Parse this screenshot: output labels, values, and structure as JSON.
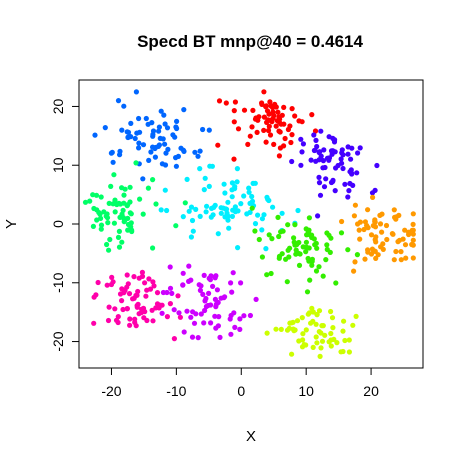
{
  "chart_data": {
    "type": "scatter",
    "title": "Specd BT mnp@40 = 0.4614",
    "xlabel": "X",
    "ylabel": "Y",
    "xlim": [
      -25,
      28
    ],
    "ylim": [
      -24.5,
      24.5
    ],
    "xticks": [
      -20,
      -10,
      0,
      10,
      20
    ],
    "yticks": [
      -20,
      -10,
      0,
      10,
      20
    ],
    "xtick_labels": [
      "-20",
      "-10",
      "0",
      "10",
      "20"
    ],
    "ytick_labels": [
      "-20",
      "-10",
      "0",
      "10",
      "20"
    ],
    "grid": false,
    "legend": "none",
    "clusters": [
      {
        "color": "#0066FF",
        "center": [
          -13,
          15
        ],
        "spread": [
          3.2,
          2.8
        ],
        "count": 70
      },
      {
        "color": "#FF0000",
        "center": [
          4,
          17.5
        ],
        "spread": [
          3.3,
          2.3
        ],
        "count": 70
      },
      {
        "color": "#4400FF",
        "center": [
          14,
          10
        ],
        "spread": [
          2.8,
          2.8
        ],
        "count": 70
      },
      {
        "color": "#00FF66",
        "center": [
          -19,
          1.5
        ],
        "spread": [
          3,
          2.6
        ],
        "count": 70
      },
      {
        "color": "#00EEFF",
        "center": [
          -2,
          3
        ],
        "spread": [
          4,
          3.2
        ],
        "count": 80
      },
      {
        "color": "#FF9900",
        "center": [
          22,
          -2
        ],
        "spread": [
          3,
          2.6
        ],
        "count": 70
      },
      {
        "color": "#33EE00",
        "center": [
          9,
          -4
        ],
        "spread": [
          3.5,
          2.8
        ],
        "count": 70
      },
      {
        "color": "#FF00AA",
        "center": [
          -16,
          -13
        ],
        "spread": [
          3.2,
          3
        ],
        "count": 70
      },
      {
        "color": "#CC00FF",
        "center": [
          -5,
          -13
        ],
        "spread": [
          3.4,
          3
        ],
        "count": 70
      },
      {
        "color": "#CCFF00",
        "center": [
          11,
          -18
        ],
        "spread": [
          3.2,
          2.2
        ],
        "count": 60
      }
    ],
    "points_x": [],
    "points_y": [],
    "points_color": []
  }
}
